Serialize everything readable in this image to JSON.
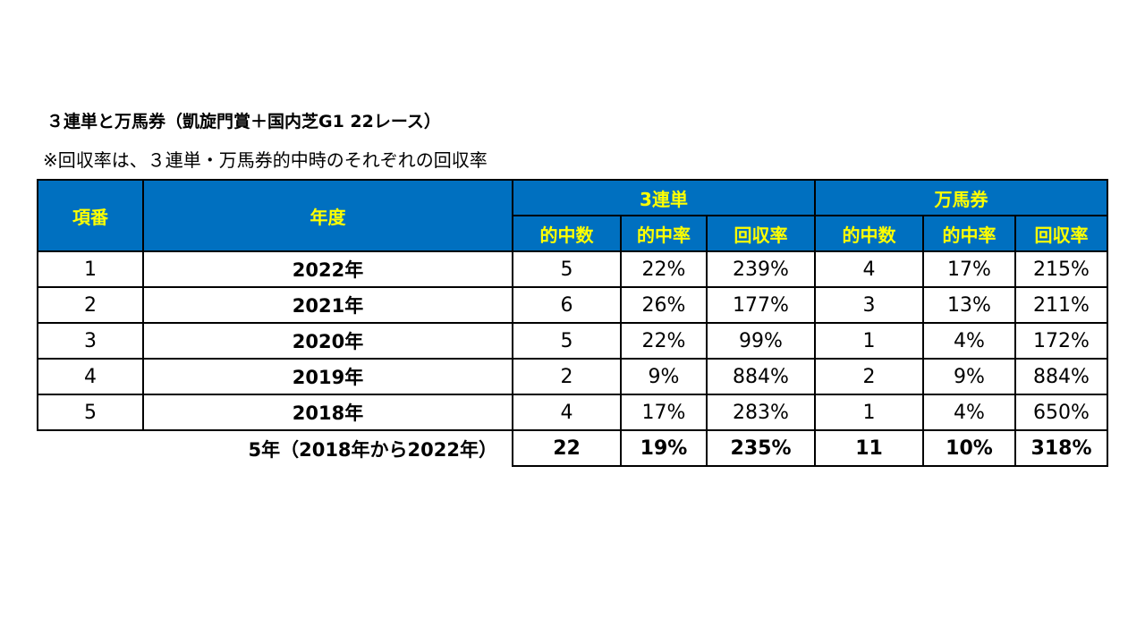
{
  "title": "３連単と万馬券（凱旋門賞＋国内芝G1 22レース）",
  "note": "※回収率は、３連単・万馬券的中時のそれぞれの回収率",
  "colors": {
    "header_bg": "#0070C0",
    "header_text": "#FFFF00",
    "border": "#000000"
  },
  "table": {
    "headers": {
      "no": "項番",
      "year": "年度",
      "group_a": "3連単",
      "group_b": "万馬券",
      "sub": [
        "的中数",
        "的中率",
        "回収率",
        "的中数",
        "的中率",
        "回収率"
      ]
    },
    "rows": [
      {
        "no": "1",
        "year": "2022年",
        "a_hits": "5",
        "a_rate": "22%",
        "a_return": "239%",
        "b_hits": "4",
        "b_rate": "17%",
        "b_return": "215%"
      },
      {
        "no": "2",
        "year": "2021年",
        "a_hits": "6",
        "a_rate": "26%",
        "a_return": "177%",
        "b_hits": "3",
        "b_rate": "13%",
        "b_return": "211%"
      },
      {
        "no": "3",
        "year": "2020年",
        "a_hits": "5",
        "a_rate": "22%",
        "a_return": "99%",
        "b_hits": "1",
        "b_rate": "4%",
        "b_return": "172%"
      },
      {
        "no": "4",
        "year": "2019年",
        "a_hits": "2",
        "a_rate": "9%",
        "a_return": "884%",
        "b_hits": "2",
        "b_rate": "9%",
        "b_return": "884%"
      },
      {
        "no": "5",
        "year": "2018年",
        "a_hits": "4",
        "a_rate": "17%",
        "a_return": "283%",
        "b_hits": "1",
        "b_rate": "4%",
        "b_return": "650%"
      }
    ],
    "summary": {
      "label": "5年（2018年から2022年）",
      "a_hits": "22",
      "a_rate": "19%",
      "a_return": "235%",
      "b_hits": "11",
      "b_rate": "10%",
      "b_return": "318%"
    }
  }
}
